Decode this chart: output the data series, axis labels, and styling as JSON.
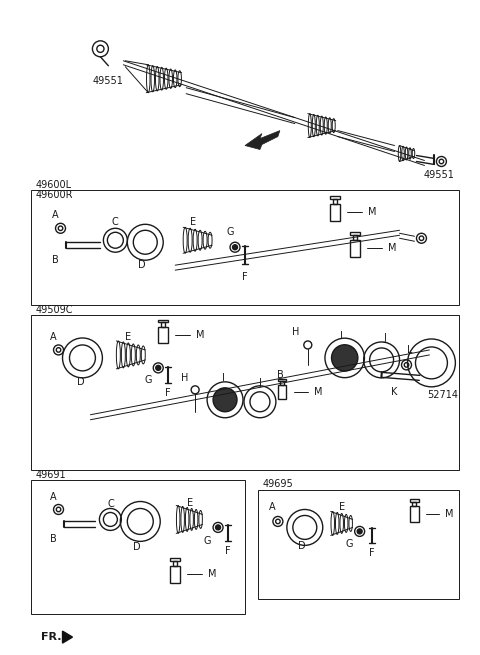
{
  "bg_color": "#ffffff",
  "line_color": "#1a1a1a",
  "gray_color": "#888888",
  "figsize": [
    4.8,
    6.55
  ],
  "dpi": 100,
  "parts": {
    "top_shaft_label": "49551",
    "box1_label": "49600L\n49600R",
    "box1_right_label": "49551",
    "box2_label": "49509C",
    "box2_right_label": "52714",
    "box3_label": "49691",
    "box4_label": "49695"
  }
}
